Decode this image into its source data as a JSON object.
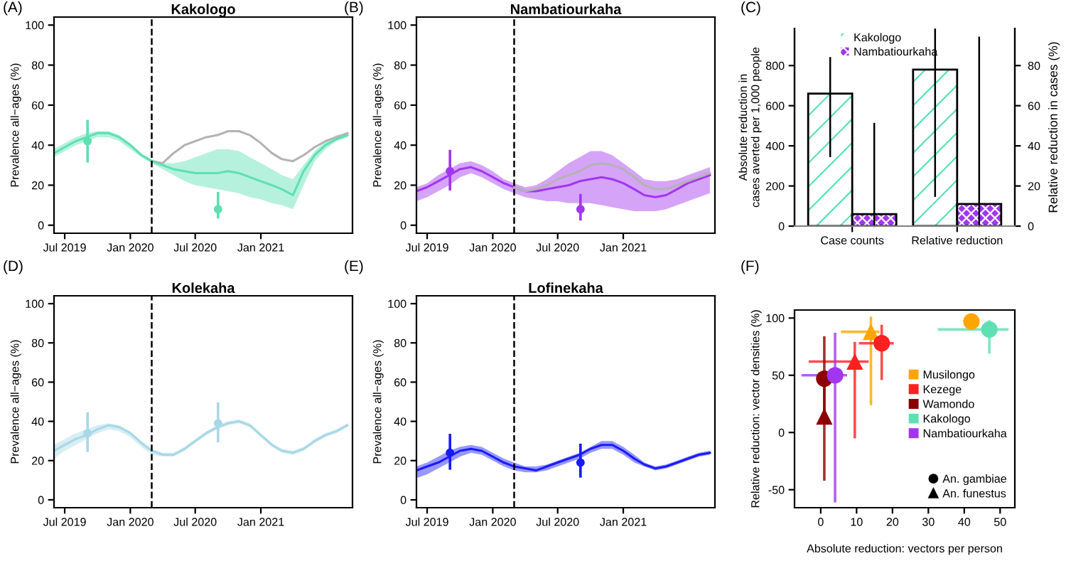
{
  "chart_data": [
    {
      "type": "line",
      "title": "Kakologo",
      "ylabel": "Prevalence all−ages (%)",
      "annotations": [
        "(A)"
      ],
      "xlim": [
        "2019-06-01",
        "2021-09-15"
      ],
      "xticks": [
        {
          "value": "2019-07-01",
          "label": "Jul 2019"
        },
        {
          "value": "2020-01-01",
          "label": "Jan 2020"
        },
        {
          "value": "2020-07-01",
          "label": "Jul 2020"
        },
        {
          "value": "2021-01-01",
          "label": "Jan 2021"
        }
      ],
      "ylim": [
        -4,
        104
      ],
      "yticks": [
        0,
        20,
        40,
        60,
        80,
        100
      ],
      "ref_lines": [
        {
          "axis": "x",
          "value": "2020-03-01",
          "line_style": "dashed",
          "color": "#000000"
        }
      ],
      "series": [
        {
          "color": "#b3b3b3",
          "x": [
            "2020-03",
            "2020-04",
            "2020-05",
            "2020-06",
            "2020-07",
            "2020-08",
            "2020-09",
            "2020-10",
            "2020-11",
            "2020-12",
            "2021-01",
            "2021-02",
            "2021-03",
            "2021-04",
            "2021-05",
            "2021-06",
            "2021-07",
            "2021-08",
            "2021-09"
          ],
          "values": [
            32,
            31,
            36,
            40,
            42,
            44,
            45,
            47,
            47,
            45,
            41,
            36,
            33,
            32,
            35,
            39,
            42,
            44,
            46
          ]
        },
        {
          "color": "#5ee0b3",
          "x": [
            "2019-06",
            "2019-07",
            "2019-08",
            "2019-09",
            "2019-10",
            "2019-11",
            "2019-12",
            "2020-01",
            "2020-02",
            "2020-03",
            "2020-04",
            "2020-05",
            "2020-06",
            "2020-07",
            "2020-08",
            "2020-09",
            "2020-10",
            "2020-11",
            "2020-12",
            "2021-01",
            "2021-02",
            "2021-03",
            "2021-04",
            "2021-05",
            "2021-06",
            "2021-07",
            "2021-08",
            "2021-09"
          ],
          "values": [
            36,
            39,
            42,
            44,
            46,
            46,
            44,
            40,
            35,
            32,
            30,
            28,
            27,
            26,
            26,
            26,
            27,
            26,
            24,
            22,
            20,
            18,
            15,
            27,
            35,
            40,
            43,
            45
          ],
          "lower": [
            34,
            37,
            40,
            42,
            44,
            44,
            42,
            38,
            34,
            31,
            28,
            25,
            22,
            20,
            19,
            18,
            17,
            16,
            14,
            13,
            11,
            10,
            8,
            20,
            32,
            38,
            42,
            44
          ],
          "upper": [
            38,
            41,
            44,
            46,
            47,
            47,
            45,
            41,
            36,
            33,
            31,
            31,
            32,
            34,
            36,
            38,
            38,
            37,
            34,
            31,
            28,
            25,
            23,
            30,
            37,
            42,
            45,
            46
          ]
        },
        {
          "type": "scatter",
          "color": "#5ee0b3",
          "x": [
            "2019-09-03",
            "2020-09-03"
          ],
          "values": [
            42,
            8
          ],
          "errors": [
            [
              32,
              52
            ],
            [
              4,
              16
            ]
          ]
        }
      ]
    },
    {
      "type": "line",
      "title": "Nambatiourkaha",
      "ylabel": "Prevalence all−ages (%)",
      "annotations": [
        "(B)"
      ],
      "xlim": [
        "2019-06-01",
        "2021-09-15"
      ],
      "xticks": [
        {
          "value": "2019-07-01",
          "label": "Jul 2019"
        },
        {
          "value": "2020-01-01",
          "label": "Jan 2020"
        },
        {
          "value": "2020-07-01",
          "label": "Jul 2020"
        },
        {
          "value": "2021-01-01",
          "label": "Jan 2021"
        }
      ],
      "ylim": [
        -4,
        104
      ],
      "yticks": [
        0,
        20,
        40,
        60,
        80,
        100
      ],
      "ref_lines": [
        {
          "axis": "x",
          "value": "2020-03-01",
          "line_style": "dashed",
          "color": "#000000"
        }
      ],
      "series": [
        {
          "color": "#a236f0",
          "x": [
            "2019-06",
            "2019-07",
            "2019-08",
            "2019-09",
            "2019-10",
            "2019-11",
            "2019-12",
            "2020-01",
            "2020-02",
            "2020-03",
            "2020-04",
            "2020-05",
            "2020-06",
            "2020-07",
            "2020-08",
            "2020-09",
            "2020-10",
            "2020-11",
            "2020-12",
            "2021-01",
            "2021-02",
            "2021-03",
            "2021-04",
            "2021-05",
            "2021-06",
            "2021-07",
            "2021-08",
            "2021-09"
          ],
          "values": [
            17,
            19,
            22,
            25,
            28,
            29,
            27,
            24,
            21,
            19,
            17,
            17,
            18,
            19,
            20,
            22,
            23,
            24,
            23,
            21,
            18,
            15,
            14,
            15,
            18,
            21,
            23,
            25
          ],
          "lower": [
            12,
            14,
            17,
            20,
            24,
            26,
            24,
            21,
            18,
            16,
            14,
            13,
            12,
            12,
            11,
            11,
            11,
            10,
            9,
            8,
            7,
            7,
            7,
            8,
            10,
            12,
            14,
            16
          ],
          "upper": [
            19,
            21,
            25,
            28,
            31,
            32,
            30,
            27,
            23,
            21,
            19,
            20,
            23,
            27,
            31,
            34,
            37,
            37,
            35,
            31,
            27,
            23,
            22,
            22,
            23,
            25,
            27,
            29
          ]
        },
        {
          "color": "#b3b3b3",
          "x": [
            "2020-03",
            "2020-04",
            "2020-05",
            "2020-06",
            "2020-07",
            "2020-08",
            "2020-09",
            "2020-10",
            "2020-11",
            "2020-12",
            "2021-01",
            "2021-02",
            "2021-03",
            "2021-04",
            "2021-05",
            "2021-06",
            "2021-07",
            "2021-08",
            "2021-09"
          ],
          "values": [
            19,
            17,
            18,
            20,
            23,
            25,
            27,
            30,
            31,
            30,
            28,
            24,
            20,
            18,
            18,
            20,
            22,
            24,
            26
          ]
        },
        {
          "type": "scatter",
          "color": "#a236f0",
          "x": [
            "2019-09-03",
            "2020-09-03"
          ],
          "values": [
            27,
            8
          ],
          "errors": [
            [
              18,
              37
            ],
            [
              3,
              15
            ]
          ]
        }
      ]
    },
    {
      "type": "bar",
      "annotations": [
        "(C)"
      ],
      "categories": [
        "Case counts",
        "Relative reduction"
      ],
      "ylabel": "Absolute reduction in\ncases averted per 1,000 people",
      "y2label": "Relative reduction in cases (%)",
      "ylim": [
        0,
        985
      ],
      "yticks": [
        0,
        200,
        400,
        600,
        800
      ],
      "y2lim": [
        0,
        98.5
      ],
      "y2ticks": [
        0,
        20,
        40,
        60,
        80
      ],
      "legend": "top",
      "series": [
        {
          "name": "Kakologo",
          "color": "#5ee0b3",
          "values": [
            660,
            null
          ],
          "errors": [
            [
              348,
              838
            ],
            null
          ]
        },
        {
          "name": "Nambatiourkaha",
          "color": "#a236f0",
          "values": [
            60,
            null
          ],
          "errors": [
            [
              0,
              510
            ],
            null
          ]
        },
        {
          "color": "#5ee0b3",
          "axis": "y2",
          "values": [
            null,
            78
          ],
          "errors": [
            null,
            [
              15,
              98
            ]
          ]
        },
        {
          "color": "#a236f0",
          "axis": "y2",
          "values": [
            null,
            11
          ],
          "errors": [
            null,
            [
              0,
              94
            ]
          ]
        }
      ]
    },
    {
      "type": "line",
      "title": "Kolekaha",
      "ylabel": "Prevalence all−ages (%)",
      "annotations": [
        "(D)"
      ],
      "xlim": [
        "2019-06-01",
        "2021-09-15"
      ],
      "xticks": [
        {
          "value": "2019-07-01",
          "label": "Jul 2019"
        },
        {
          "value": "2020-01-01",
          "label": "Jan 2020"
        },
        {
          "value": "2020-07-01",
          "label": "Jul 2020"
        },
        {
          "value": "2021-01-01",
          "label": "Jan 2021"
        }
      ],
      "ylim": [
        -4,
        104
      ],
      "yticks": [
        0,
        20,
        40,
        60,
        80,
        100
      ],
      "ref_lines": [
        {
          "axis": "x",
          "value": "2020-03-01",
          "line_style": "dashed",
          "color": "#000000"
        }
      ],
      "series": [
        {
          "color": "#a8d8e6",
          "x": [
            "2019-06",
            "2019-07",
            "2019-08",
            "2019-09",
            "2019-10",
            "2019-11",
            "2019-12",
            "2020-01",
            "2020-02",
            "2020-03",
            "2020-04",
            "2020-05",
            "2020-06",
            "2020-07",
            "2020-08",
            "2020-09",
            "2020-10",
            "2020-11",
            "2020-12",
            "2021-01",
            "2021-02",
            "2021-03",
            "2021-04",
            "2021-05",
            "2021-06",
            "2021-07",
            "2021-08",
            "2021-09"
          ],
          "values": [
            25,
            28,
            31,
            33,
            36,
            38,
            37,
            34,
            29,
            25,
            23,
            23,
            26,
            30,
            34,
            37,
            39,
            40,
            38,
            33,
            28,
            25,
            24,
            26,
            30,
            33,
            35,
            38
          ],
          "lower": [
            21,
            25,
            28,
            31,
            34,
            36,
            35,
            32,
            27,
            23,
            22,
            22,
            25,
            29,
            33,
            36,
            38,
            39,
            37,
            32,
            27,
            24,
            23,
            25,
            29,
            32,
            34,
            37
          ],
          "upper": [
            28,
            31,
            34,
            36,
            38,
            39,
            38,
            35,
            30,
            26,
            24,
            24,
            27,
            31,
            35,
            38,
            40,
            41,
            39,
            34,
            29,
            26,
            25,
            27,
            31,
            34,
            36,
            39
          ]
        },
        {
          "type": "scatter",
          "color": "#a8d8e6",
          "x": [
            "2019-09-03",
            "2020-09-03"
          ],
          "values": [
            34,
            39
          ],
          "errors": [
            [
              25,
              44
            ],
            [
              30,
              49
            ]
          ]
        }
      ]
    },
    {
      "type": "line",
      "title": "Lofinekaha",
      "ylabel": "Prevalence all−ages (%)",
      "annotations": [
        "(E)"
      ],
      "xlim": [
        "2019-06-01",
        "2021-09-15"
      ],
      "xticks": [
        {
          "value": "2019-07-01",
          "label": "Jul 2019"
        },
        {
          "value": "2020-01-01",
          "label": "Jan 2020"
        },
        {
          "value": "2020-07-01",
          "label": "Jul 2020"
        },
        {
          "value": "2021-01-01",
          "label": "Jan 2021"
        }
      ],
      "ylim": [
        -4,
        104
      ],
      "yticks": [
        0,
        20,
        40,
        60,
        80,
        100
      ],
      "ref_lines": [
        {
          "axis": "x",
          "value": "2020-03-01",
          "line_style": "dashed",
          "color": "#000000"
        }
      ],
      "series": [
        {
          "color": "#1a1aff",
          "x": [
            "2019-06",
            "2019-07",
            "2019-08",
            "2019-09",
            "2019-10",
            "2019-11",
            "2019-12",
            "2020-01",
            "2020-02",
            "2020-03",
            "2020-04",
            "2020-05",
            "2020-06",
            "2020-07",
            "2020-08",
            "2020-09",
            "2020-10",
            "2020-11",
            "2020-12",
            "2021-01",
            "2021-02",
            "2021-03",
            "2021-04",
            "2021-05",
            "2021-06",
            "2021-07",
            "2021-08",
            "2021-09"
          ],
          "values": [
            15,
            17,
            19,
            22,
            25,
            26,
            25,
            22,
            19,
            17,
            16,
            15,
            17,
            19,
            21,
            23,
            26,
            28,
            28,
            25,
            21,
            18,
            16,
            17,
            19,
            21,
            23,
            24
          ],
          "lower": [
            11,
            13,
            16,
            19,
            22,
            24,
            23,
            20,
            17,
            15,
            14,
            14,
            15,
            17,
            19,
            21,
            24,
            26,
            26,
            23,
            19,
            17,
            15,
            16,
            18,
            20,
            22,
            23
          ],
          "upper": [
            17,
            19,
            22,
            25,
            27,
            28,
            27,
            24,
            21,
            19,
            17,
            17,
            18,
            20,
            22,
            24,
            27,
            30,
            30,
            27,
            23,
            19,
            17,
            18,
            20,
            22,
            24,
            25
          ]
        },
        {
          "type": "scatter",
          "color": "#1a1aff",
          "x": [
            "2019-09-03",
            "2020-09-03"
          ],
          "values": [
            24,
            19
          ],
          "errors": [
            [
              16,
              33
            ],
            [
              12,
              28
            ]
          ]
        }
      ]
    },
    {
      "type": "scatter",
      "annotations": [
        "(F)"
      ],
      "xlabel": "Absolute reduction: vectors per person",
      "ylabel": "Relative reduction: vector densities (%)",
      "xlim": [
        -7.3,
        54.1
      ],
      "xticks": [
        0,
        10,
        20,
        30,
        40,
        50
      ],
      "ylim": [
        -65.7,
        107
      ],
      "yticks": [
        -50,
        0,
        50,
        100
      ],
      "legend": "right",
      "series": [
        {
          "name": "Musilongo",
          "color": "#ffa500",
          "marker": "circle",
          "x": [
            42
          ],
          "values": [
            97
          ]
        },
        {
          "color": "#ffa500",
          "marker": "triangle",
          "x": [
            14
          ],
          "values": [
            88
          ],
          "xerrors": [
            [
              6,
              16
            ]
          ],
          "errors": [
            [
              25,
              100
            ]
          ]
        },
        {
          "name": "Kezege",
          "color": "#ff2020",
          "marker": "circle",
          "x": [
            17
          ],
          "values": [
            78
          ],
          "xerrors": [
            [
              11,
              20
            ]
          ],
          "errors": [
            [
              47,
              93
            ]
          ]
        },
        {
          "color": "#ff2020",
          "marker": "triangle",
          "x": [
            9.5
          ],
          "values": [
            62
          ],
          "xerrors": [
            [
              -3,
              13
            ]
          ],
          "errors": [
            [
              -4,
              78
            ]
          ]
        },
        {
          "name": "Wamondo",
          "color": "#8b0000",
          "marker": "circle",
          "x": [
            1
          ],
          "values": [
            47
          ],
          "errors": [
            [
              10,
              83
            ]
          ]
        },
        {
          "color": "#8b0000",
          "marker": "triangle",
          "x": [
            1
          ],
          "values": [
            14
          ],
          "errors": [
            [
              -41,
              40
            ]
          ]
        },
        {
          "name": "Kakologo",
          "color": "#5ee0b3",
          "marker": "circle",
          "x": [
            47
          ],
          "values": [
            90
          ],
          "xerrors": [
            [
              33,
              52
            ]
          ],
          "errors": [
            [
              70,
              97
            ]
          ]
        },
        {
          "name": "Nambatiourkaha",
          "color": "#a236f0",
          "marker": "circle",
          "x": [
            4
          ],
          "values": [
            50
          ],
          "xerrors": [
            [
              -5,
              7
            ]
          ],
          "errors": [
            [
              -60,
              86
            ]
          ]
        },
        {
          "name": "An. gambiae",
          "color": "#000000",
          "marker": "circle"
        },
        {
          "name": "An. funestus",
          "color": "#000000",
          "marker": "triangle"
        }
      ]
    }
  ]
}
